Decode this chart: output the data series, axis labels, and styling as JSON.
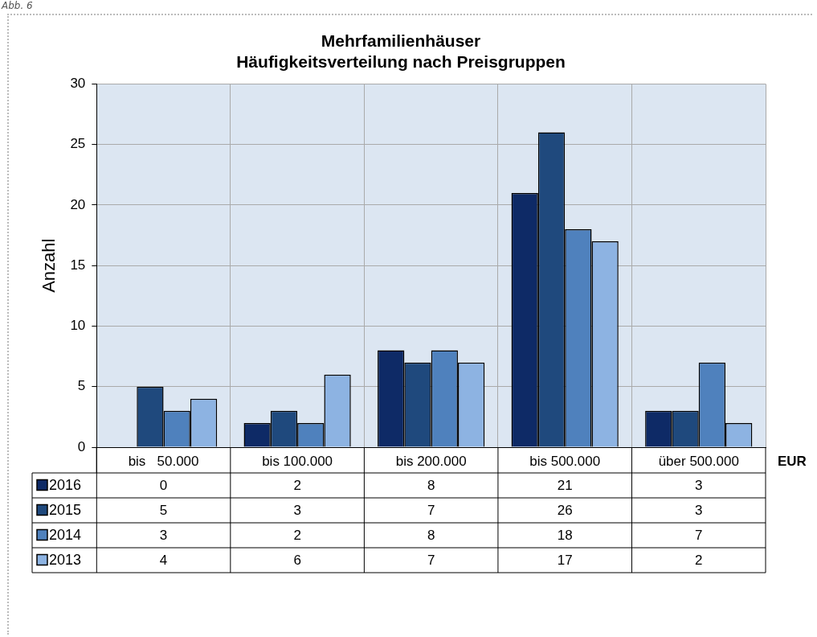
{
  "chart_data": {
    "type": "bar",
    "title": "Mehrfamilienhäuser\nHäufigkeitsverteilung nach Preisgruppen",
    "ylabel": "Anzahl",
    "xlabel": "EUR",
    "categories": [
      "bis   50.000",
      "bis 100.000",
      "bis 200.000",
      "bis 500.000",
      "über 500.000"
    ],
    "series": [
      {
        "name": "2016",
        "color": "#0e2a66",
        "values": [
          0,
          2,
          8,
          21,
          3
        ]
      },
      {
        "name": "2015",
        "color": "#1f497d",
        "values": [
          5,
          3,
          7,
          26,
          3
        ]
      },
      {
        "name": "2014",
        "color": "#4f81bd",
        "values": [
          3,
          2,
          8,
          18,
          7
        ]
      },
      {
        "name": "2013",
        "color": "#8db3e2",
        "values": [
          4,
          6,
          7,
          17,
          2
        ]
      }
    ],
    "ylim": [
      0,
      30
    ],
    "yticks": [
      0,
      5,
      10,
      15,
      20,
      25,
      30
    ],
    "grid": true,
    "legend": "bottom",
    "data_labels": true,
    "annotations": [
      "Abb. 6"
    ]
  }
}
